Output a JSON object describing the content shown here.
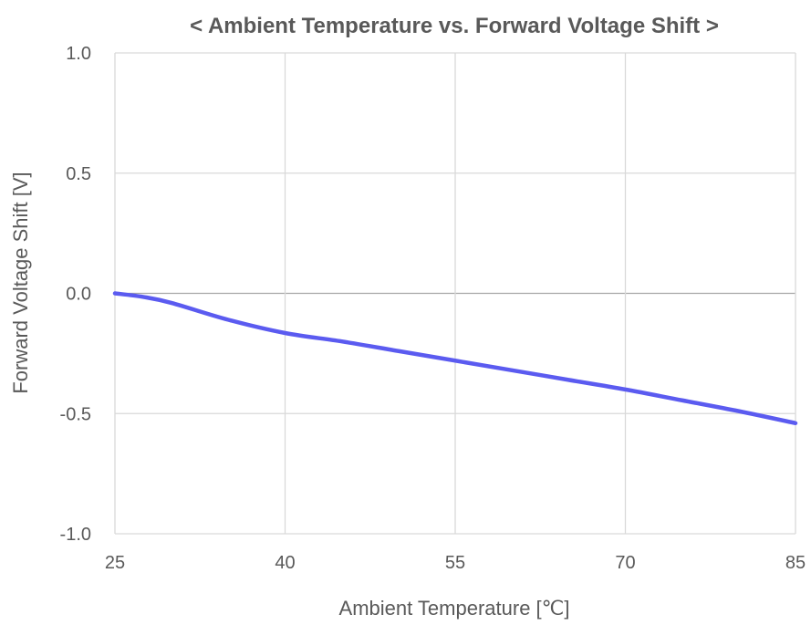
{
  "chart_data": {
    "type": "line",
    "title": "< Ambient Temperature vs. Forward Voltage Shift >",
    "xlabel": "Ambient Temperature [℃]",
    "ylabel": "Forward Voltage Shift [V]",
    "xlim": [
      25,
      85
    ],
    "ylim": [
      -1.0,
      1.0
    ],
    "x_ticks": [
      25,
      40,
      55,
      70,
      85
    ],
    "y_ticks": [
      1.0,
      0.5,
      0.0,
      -0.5,
      -1.0
    ],
    "x_tick_labels": [
      "25",
      "40",
      "55",
      "70",
      "85"
    ],
    "y_tick_labels": [
      "1.0",
      "0.5",
      "0.0",
      "-0.5",
      "-1.0"
    ],
    "grid": true,
    "legend": "none",
    "series": [
      {
        "color": "#5b5bf0",
        "x": [
          25,
          27.5,
          30,
          35,
          40,
          45,
          50,
          55,
          60,
          65,
          70,
          75,
          80,
          85
        ],
        "y": [
          0.0,
          -0.015,
          -0.04,
          -0.11,
          -0.165,
          -0.2,
          -0.24,
          -0.28,
          -0.32,
          -0.36,
          -0.4,
          -0.445,
          -0.49,
          -0.54
        ]
      }
    ]
  }
}
